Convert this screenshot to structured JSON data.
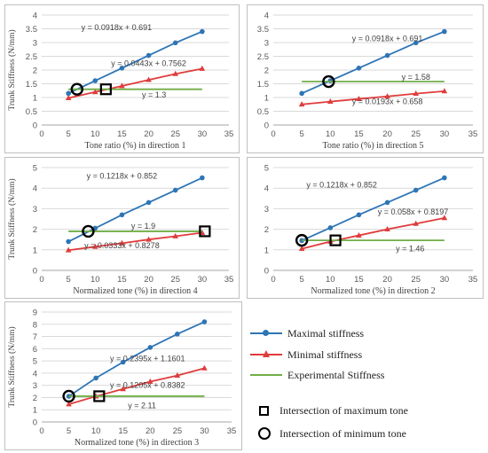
{
  "colors": {
    "maximal": "#2e75b6",
    "minimal": "#e03c3c",
    "experimental": "#70ad47",
    "grid": "#d9d9d9",
    "axis_text": "#595959"
  },
  "legend": {
    "maximal_label": "Maximal stiffness",
    "minimal_label": "Minimal stiffness",
    "experimental_label": "Experimental Stiffness",
    "max_tone_label": "Intersection  of maximum tone",
    "min_tone_label": "Intersection  of minimum tone"
  },
  "chart_data": [
    {
      "type": "line",
      "xlabel": "Tone ratio (%) in direction 1",
      "ylabel": "Trunk Stiffness (N/mm)",
      "xlim": [
        0,
        35
      ],
      "ylim": [
        0,
        4
      ],
      "xticks": [
        0,
        5,
        10,
        15,
        20,
        25,
        30,
        35
      ],
      "yticks": [
        0,
        0.5,
        1,
        1.5,
        2,
        2.5,
        3,
        3.5,
        4
      ],
      "ytick_labels": [
        "0",
        "0.5",
        "1",
        "1.5",
        "2",
        "2.5",
        "3",
        "3.5",
        "4"
      ],
      "grid": true,
      "series": [
        {
          "name": "Maximal stiffness",
          "x": [
            5,
            10,
            15,
            20,
            25,
            30
          ],
          "y": [
            1.15,
            1.61,
            2.07,
            2.53,
            2.99,
            3.4
          ]
        },
        {
          "name": "Minimal stiffness",
          "x": [
            5,
            10,
            15,
            20,
            25,
            30
          ],
          "y": [
            0.98,
            1.2,
            1.42,
            1.64,
            1.86,
            2.05
          ]
        },
        {
          "name": "Experimental Stiffness",
          "x": [
            5,
            30
          ],
          "y": [
            1.3,
            1.3
          ]
        }
      ],
      "annotations": [
        {
          "text": "y = 0.0918x + 0.691",
          "x": 14,
          "y": 3.55
        },
        {
          "text": "y = 0.0443x + 0.7562",
          "x": 20,
          "y": 2.25
        },
        {
          "text": "y = 1.3",
          "x": 21,
          "y": 1.1
        }
      ],
      "max_tone_point": [
        12,
        1.3
      ],
      "min_tone_point": [
        6.6,
        1.3
      ]
    },
    {
      "type": "line",
      "xlabel": "Tone ratio (%) in direction 5",
      "ylabel": "",
      "xlim": [
        0,
        35
      ],
      "ylim": [
        0,
        4
      ],
      "xticks": [
        0,
        5,
        10,
        15,
        20,
        25,
        30,
        35
      ],
      "yticks": [
        0,
        0.5,
        1,
        1.5,
        2,
        2.5,
        3,
        3.5,
        4
      ],
      "ytick_labels": [
        "0",
        "0.5",
        "1",
        "1.5",
        "2",
        "2.5",
        "3",
        "3.5",
        "4"
      ],
      "grid": true,
      "series": [
        {
          "name": "Maximal stiffness",
          "x": [
            5,
            10,
            15,
            20,
            25,
            30
          ],
          "y": [
            1.15,
            1.61,
            2.07,
            2.53,
            2.99,
            3.4
          ]
        },
        {
          "name": "Minimal stiffness",
          "x": [
            5,
            10,
            15,
            20,
            25,
            30
          ],
          "y": [
            0.75,
            0.85,
            0.95,
            1.04,
            1.14,
            1.23
          ]
        },
        {
          "name": "Experimental Stiffness",
          "x": [
            5,
            30
          ],
          "y": [
            1.58,
            1.58
          ]
        }
      ],
      "annotations": [
        {
          "text": "y = 0.0918x + 0.691",
          "x": 20,
          "y": 3.15
        },
        {
          "text": "y = 1.58",
          "x": 25,
          "y": 1.75
        },
        {
          "text": "y = 0.0193x + 0.658",
          "x": 20,
          "y": 0.85
        }
      ],
      "min_tone_point": [
        9.7,
        1.58
      ]
    },
    {
      "type": "line",
      "xlabel": "Normalized  tone (%) in direction 4",
      "ylabel": "Trunk Stiffness (N/mm)",
      "xlim": [
        0,
        35
      ],
      "ylim": [
        0,
        5
      ],
      "xticks": [
        0,
        5,
        10,
        15,
        20,
        25,
        30,
        35
      ],
      "yticks": [
        0,
        1,
        2,
        3,
        4,
        5
      ],
      "ytick_labels": [
        "0",
        "1",
        "2",
        "3",
        "4",
        "5"
      ],
      "grid": true,
      "series": [
        {
          "name": "Maximal stiffness",
          "x": [
            5,
            10,
            15,
            20,
            25,
            30
          ],
          "y": [
            1.4,
            2.05,
            2.7,
            3.3,
            3.9,
            4.5
          ]
        },
        {
          "name": "Minimal stiffness",
          "x": [
            5,
            10,
            15,
            20,
            25,
            30
          ],
          "y": [
            0.98,
            1.15,
            1.32,
            1.5,
            1.66,
            1.83
          ]
        },
        {
          "name": "Experimental Stiffness",
          "x": [
            5,
            30
          ],
          "y": [
            1.9,
            1.9
          ]
        }
      ],
      "annotations": [
        {
          "text": "y = 0.1218x + 0.852",
          "x": 15,
          "y": 4.6
        },
        {
          "text": "y = 1.9",
          "x": 19,
          "y": 2.15
        },
        {
          "text": "y = 0.0333x + 0.8278",
          "x": 15,
          "y": 1.2
        }
      ],
      "max_tone_point": [
        30.5,
        1.9
      ],
      "min_tone_point": [
        8.7,
        1.9
      ]
    },
    {
      "type": "line",
      "xlabel": "Normalized  tone (%) in direction 2",
      "ylabel": "",
      "xlim": [
        0,
        35
      ],
      "ylim": [
        0,
        5
      ],
      "xticks": [
        0,
        5,
        10,
        15,
        20,
        25,
        30,
        35
      ],
      "yticks": [
        0,
        1,
        2,
        3,
        4,
        5
      ],
      "ytick_labels": [
        "0",
        "1",
        "2",
        "3",
        "4",
        "5"
      ],
      "grid": true,
      "series": [
        {
          "name": "Maximal stiffness",
          "x": [
            5,
            10,
            15,
            20,
            25,
            30
          ],
          "y": [
            1.45,
            2.07,
            2.7,
            3.3,
            3.9,
            4.5
          ]
        },
        {
          "name": "Minimal stiffness",
          "x": [
            5,
            10,
            15,
            20,
            25,
            30
          ],
          "y": [
            1.05,
            1.4,
            1.7,
            2.0,
            2.27,
            2.55
          ]
        },
        {
          "name": "Experimental Stiffness",
          "x": [
            5,
            30
          ],
          "y": [
            1.46,
            1.46
          ]
        }
      ],
      "annotations": [
        {
          "text": "y = 0.1218x + 0.852",
          "x": 12,
          "y": 4.15
        },
        {
          "text": "y = 0.058x + 0.8197",
          "x": 24.5,
          "y": 2.85
        },
        {
          "text": "y = 1.46",
          "x": 24,
          "y": 1.05
        }
      ],
      "max_tone_point": [
        10.9,
        1.46
      ],
      "min_tone_point": [
        5,
        1.46
      ]
    },
    {
      "type": "line",
      "xlabel": "Normalized  tone (%) in direction 3",
      "ylabel": "Trunk Stiffness (N/mm)",
      "xlim": [
        0,
        35
      ],
      "ylim": [
        0,
        9
      ],
      "xticks": [
        0,
        5,
        10,
        15,
        20,
        25,
        30,
        35
      ],
      "yticks": [
        0,
        1,
        2,
        3,
        4,
        5,
        6,
        7,
        8,
        9
      ],
      "ytick_labels": [
        "0",
        "1",
        "2",
        "3",
        "4",
        "5",
        "6",
        "7",
        "8",
        "9"
      ],
      "grid": true,
      "series": [
        {
          "name": "Maximal stiffness",
          "x": [
            5,
            10,
            15,
            20,
            25,
            30
          ],
          "y": [
            2.1,
            3.6,
            4.9,
            6.1,
            7.2,
            8.2
          ]
        },
        {
          "name": "Minimal stiffness",
          "x": [
            5,
            10,
            15,
            20,
            25,
            30
          ],
          "y": [
            1.45,
            2.1,
            2.7,
            3.3,
            3.8,
            4.4
          ]
        },
        {
          "name": "Experimental Stiffness",
          "x": [
            5,
            30
          ],
          "y": [
            2.11,
            2.11
          ]
        }
      ],
      "annotations": [
        {
          "text": "y = 0.2395x + 1.1601",
          "x": 19.5,
          "y": 5.2
        },
        {
          "text": "y = 0.1205x + 0.8382",
          "x": 19.5,
          "y": 3.0
        },
        {
          "text": "y =  2.11",
          "x": 18.5,
          "y": 1.35
        }
      ],
      "max_tone_point": [
        10.6,
        2.11
      ],
      "min_tone_point": [
        5,
        2.11
      ]
    }
  ]
}
